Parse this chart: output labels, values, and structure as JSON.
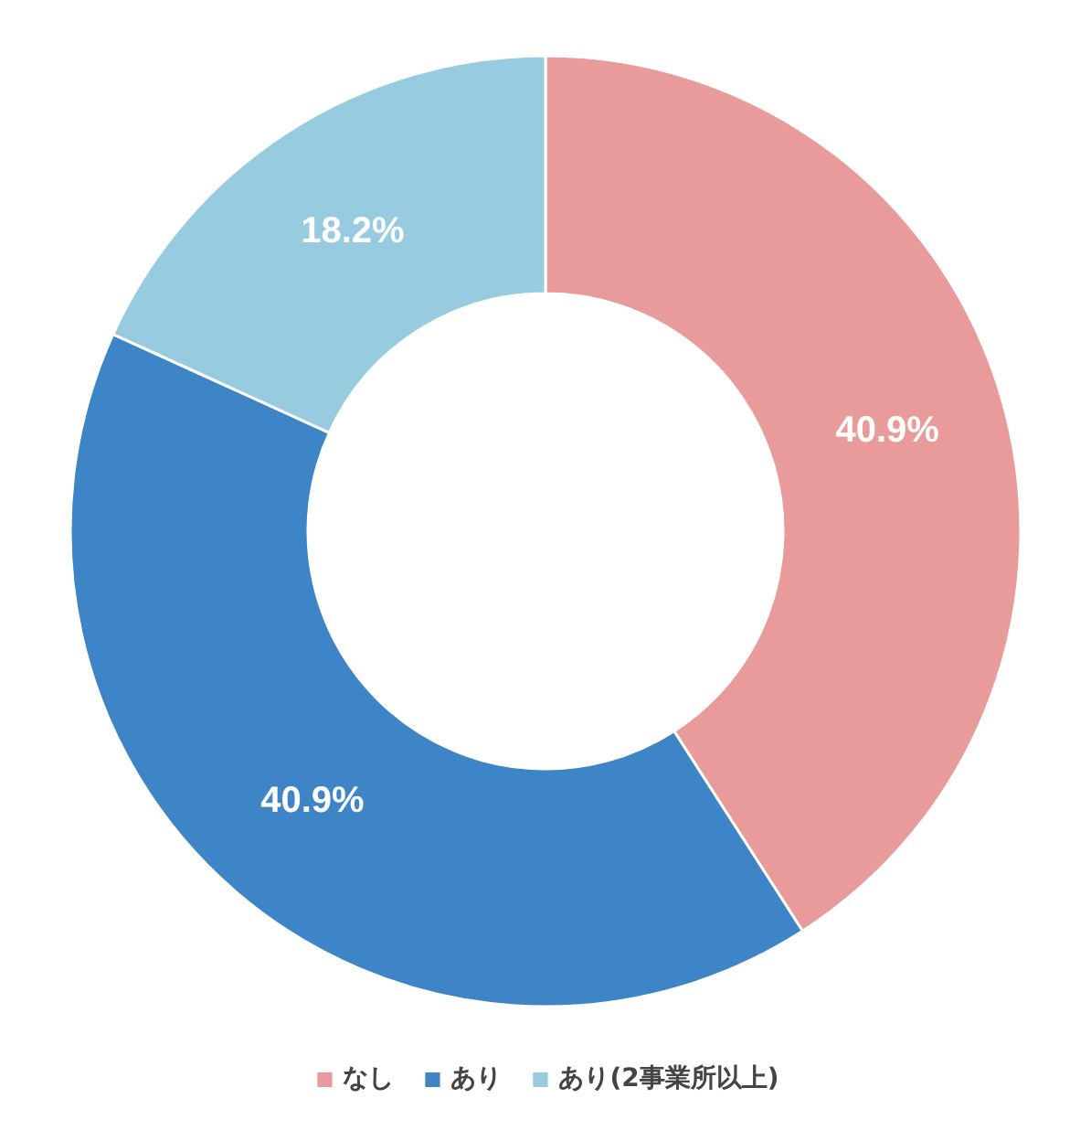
{
  "chart_data": {
    "type": "donut",
    "categories": [
      "なし",
      "あり",
      "あり(2事業所以上)"
    ],
    "values": [
      40.9,
      40.9,
      18.2
    ],
    "colors": [
      "#e99a9a",
      "#3d85c6",
      "#96cbe0"
    ],
    "value_labels": [
      "40.9%",
      "40.9%",
      "18.2%"
    ],
    "legend": "bottom"
  }
}
